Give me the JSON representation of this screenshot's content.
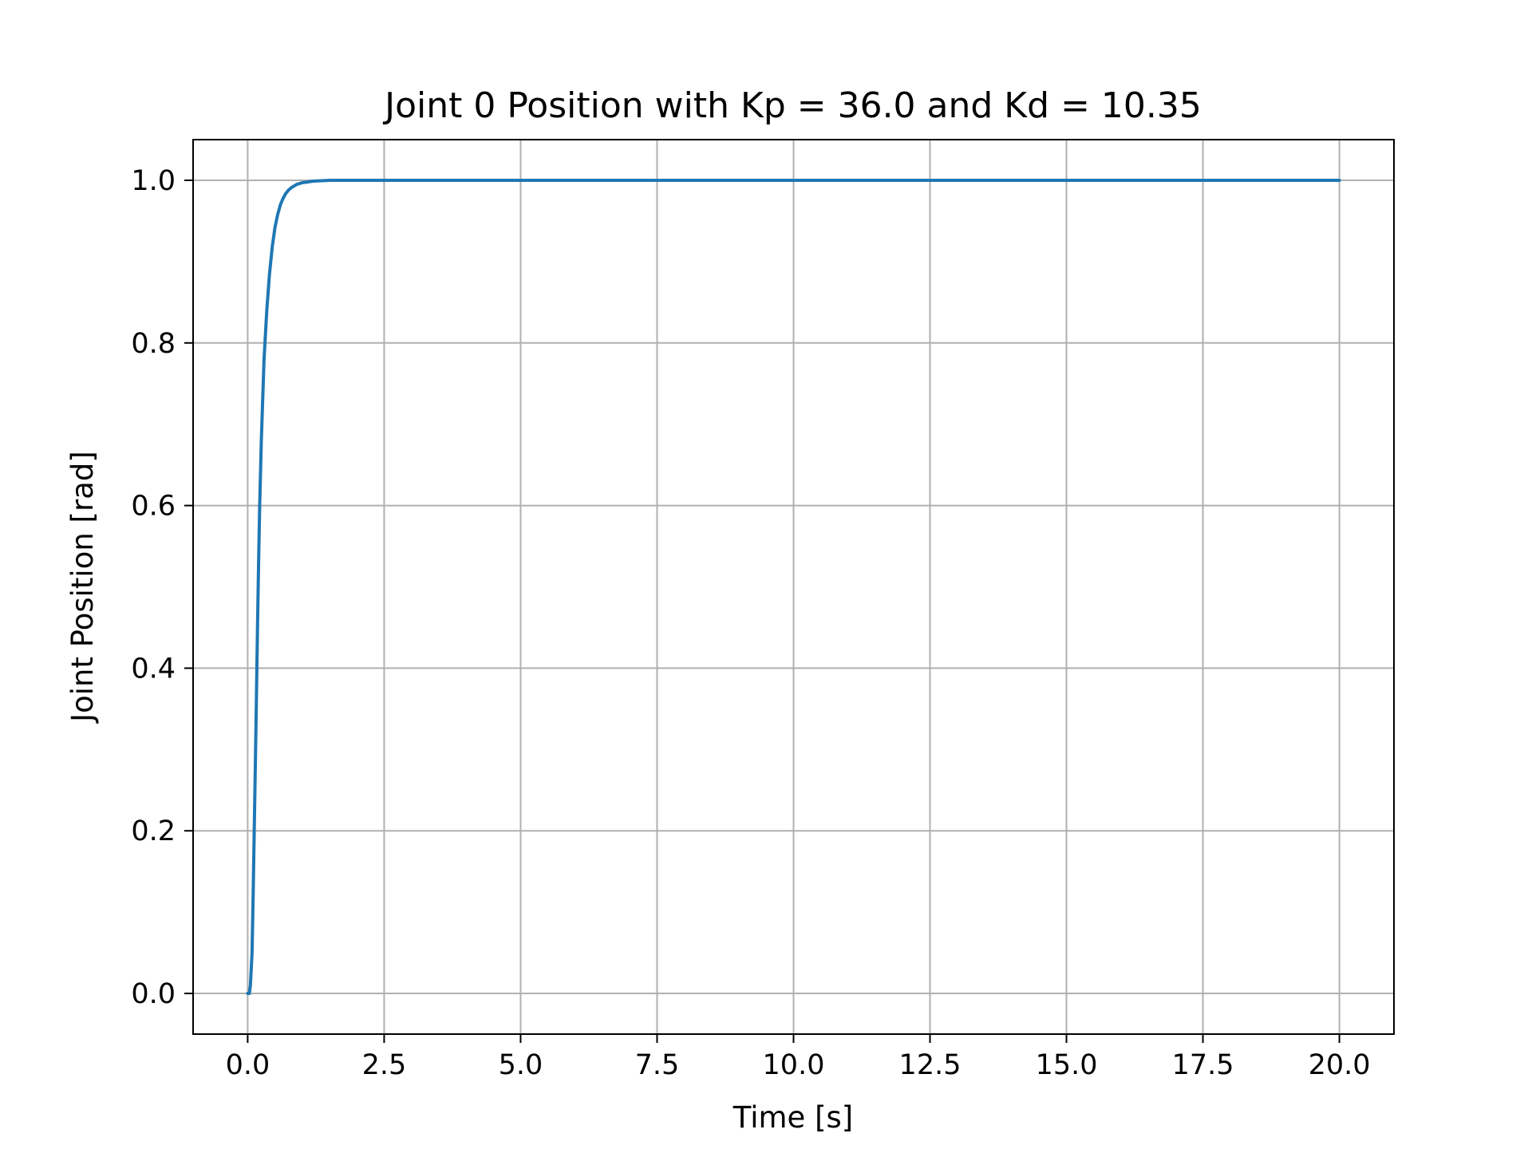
{
  "chart_data": {
    "type": "line",
    "title": "Joint 0 Position with Kp = 36.0 and Kd = 10.35",
    "xlabel": "Time [s]",
    "ylabel": "Joint Position [rad]",
    "xlim": [
      -1.0,
      21.0
    ],
    "ylim": [
      -0.05,
      1.05
    ],
    "grid": true,
    "x_ticks": [
      0.0,
      2.5,
      5.0,
      7.5,
      10.0,
      12.5,
      15.0,
      17.5,
      20.0
    ],
    "x_tick_labels": [
      "0.0",
      "2.5",
      "5.0",
      "7.5",
      "10.0",
      "12.5",
      "15.0",
      "17.5",
      "20.0"
    ],
    "y_ticks": [
      0.0,
      0.2,
      0.4,
      0.6,
      0.8,
      1.0
    ],
    "y_tick_labels": [
      "0.0",
      "0.2",
      "0.4",
      "0.6",
      "0.8",
      "1.0"
    ],
    "series": [
      {
        "color": "#1f77b4",
        "x": [
          0.0,
          0.03,
          0.05,
          0.08,
          0.1,
          0.12,
          0.15,
          0.18,
          0.2,
          0.22,
          0.25,
          0.28,
          0.3,
          0.35,
          0.4,
          0.45,
          0.5,
          0.55,
          0.6,
          0.65,
          0.7,
          0.75,
          0.8,
          0.9,
          1.0,
          1.1,
          1.2,
          1.35,
          1.5,
          1.75,
          2.0,
          3.0,
          5.0,
          10.0,
          15.0,
          20.0
        ],
        "y": [
          0.0,
          0.0,
          0.01,
          0.05,
          0.12,
          0.2,
          0.32,
          0.45,
          0.53,
          0.6,
          0.68,
          0.74,
          0.78,
          0.84,
          0.885,
          0.918,
          0.942,
          0.958,
          0.97,
          0.978,
          0.984,
          0.988,
          0.991,
          0.995,
          0.997,
          0.998,
          0.999,
          0.9995,
          1.0,
          1.0,
          1.0,
          1.0,
          1.0,
          1.0,
          1.0,
          1.0
        ]
      }
    ]
  }
}
